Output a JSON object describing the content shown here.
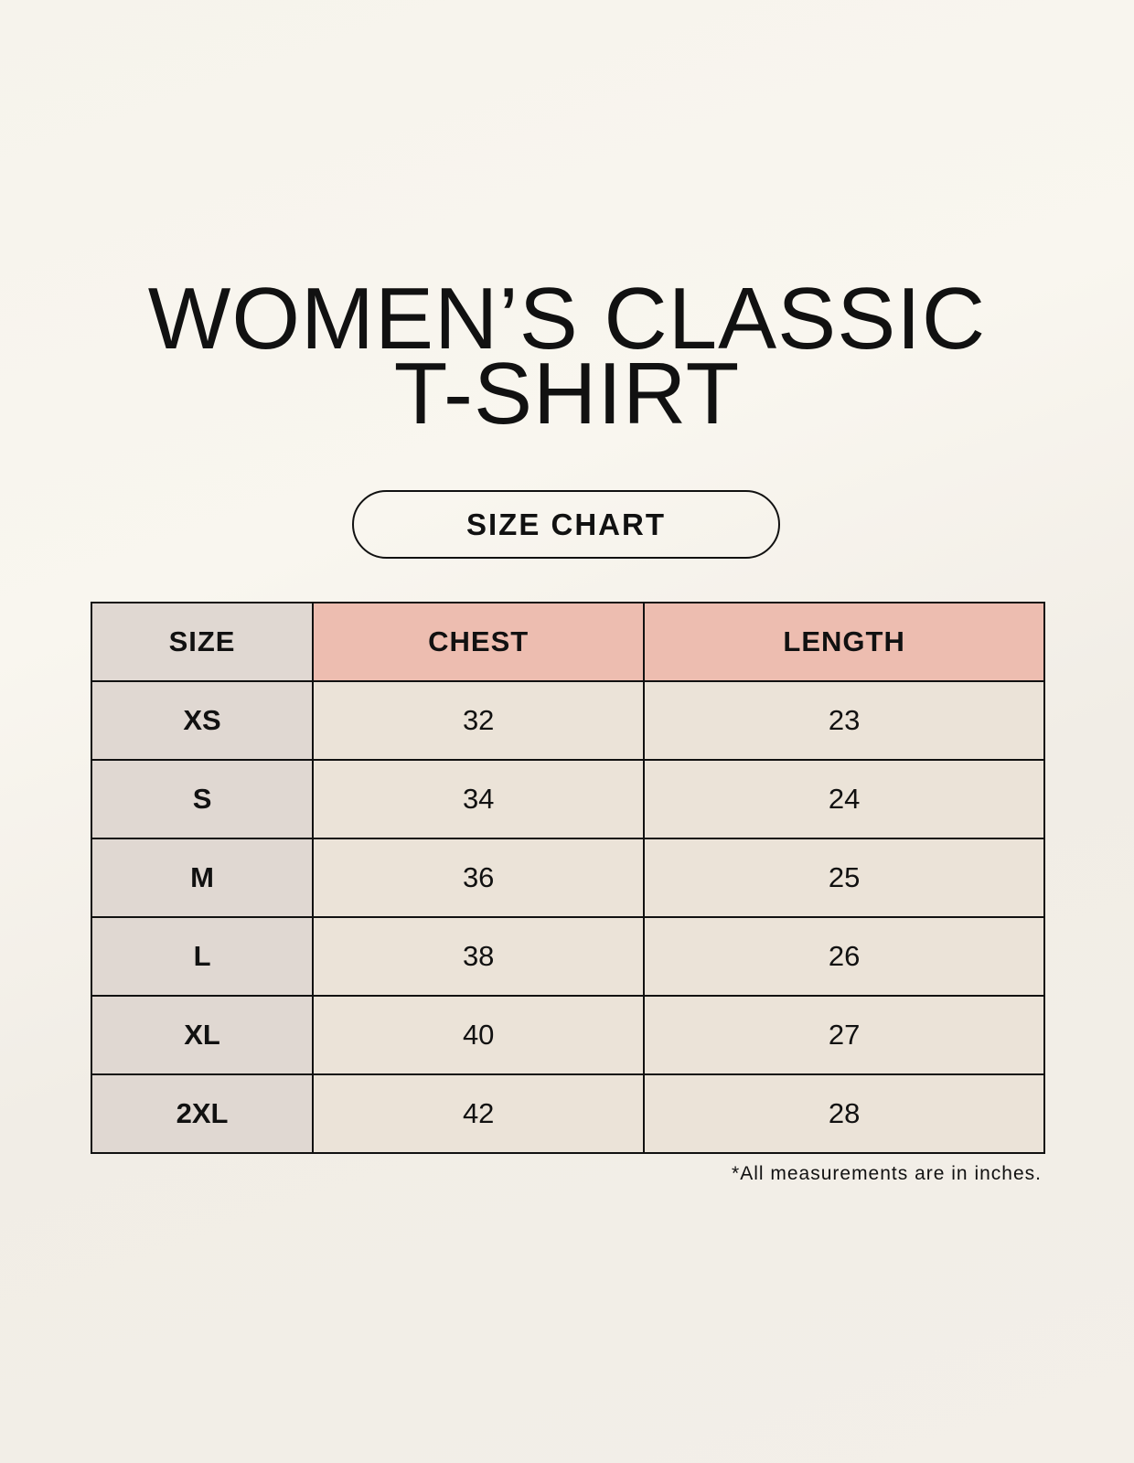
{
  "title": {
    "line1": "WOMEN’S CLASSIC",
    "line2": "T-SHIRT"
  },
  "subtitle": "SIZE CHART",
  "table": {
    "headers": [
      "SIZE",
      "CHEST",
      "LENGTH"
    ],
    "rows": [
      [
        "XS",
        "32",
        "23"
      ],
      [
        "S",
        "34",
        "24"
      ],
      [
        "M",
        "36",
        "25"
      ],
      [
        "L",
        "38",
        "26"
      ],
      [
        "XL",
        "40",
        "27"
      ],
      [
        "2XL",
        "42",
        "28"
      ]
    ]
  },
  "footnote": "*All measurements are in inches.",
  "colors": {
    "size_column": "#e0d8d2",
    "header_accent": "#edbdb0",
    "cells": "#ebe3d8"
  }
}
